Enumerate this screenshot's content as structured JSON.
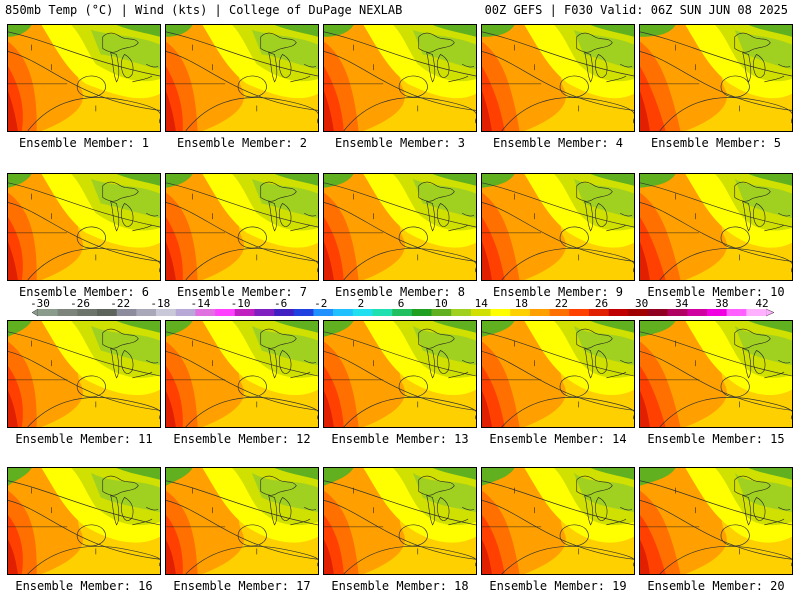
{
  "header": {
    "left": "850mb Temp (°C) | Wind (kts) | College of DuPage NEXLAB",
    "right": "00Z GEFS | F030 Valid: 06Z SUN JUN 08 2025"
  },
  "members": [
    "Ensemble Member: 1",
    "Ensemble Member: 2",
    "Ensemble Member: 3",
    "Ensemble Member: 4",
    "Ensemble Member: 5",
    "Ensemble Member: 6",
    "Ensemble Member: 7",
    "Ensemble Member: 8",
    "Ensemble Member: 9",
    "Ensemble Member: 10",
    "Ensemble Member: 11",
    "Ensemble Member: 12",
    "Ensemble Member: 13",
    "Ensemble Member: 14",
    "Ensemble Member: 15",
    "Ensemble Member: 16",
    "Ensemble Member: 17",
    "Ensemble Member: 18",
    "Ensemble Member: 19",
    "Ensemble Member: 20"
  ],
  "colorbar": {
    "labels": [
      "-30",
      "-26",
      "-22",
      "-18",
      "-14",
      "-10",
      "-6",
      "-2",
      "2",
      "6",
      "10",
      "14",
      "18",
      "22",
      "26",
      "30",
      "34",
      "38",
      "42"
    ],
    "colors": [
      "#8c9c8c",
      "#7c847c",
      "#6c746c",
      "#5c645c",
      "#8c8c9c",
      "#a8a8b8",
      "#c8c8d8",
      "#b8a8d8",
      "#e070e0",
      "#ff40ff",
      "#c020c0",
      "#8020c0",
      "#4020c0",
      "#2040e0",
      "#2090ff",
      "#20c0ff",
      "#20e0f0",
      "#20e0b0",
      "#20c060",
      "#20a020",
      "#60b020",
      "#a0d020",
      "#d0e000",
      "#ffff00",
      "#ffd000",
      "#ffa000",
      "#ff7000",
      "#ff4000",
      "#e02000",
      "#c00000",
      "#a00000",
      "#900020",
      "#b00060",
      "#d000a0",
      "#f000e0",
      "#ff60ff",
      "#ffb0ff"
    ]
  }
}
